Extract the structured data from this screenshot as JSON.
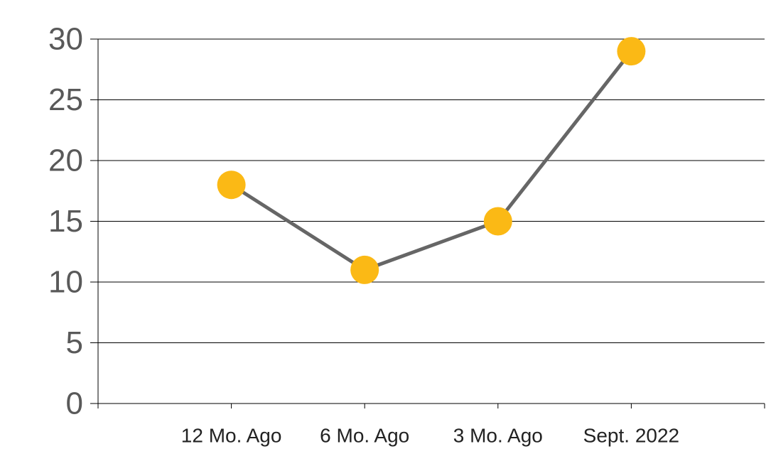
{
  "chart_data": {
    "type": "line",
    "categories": [
      "12 Mo. Ago",
      "6 Mo. Ago",
      "3 Mo. Ago",
      "Sept. 2022"
    ],
    "values": [
      18,
      11,
      15,
      29
    ],
    "ylim": [
      0,
      30
    ],
    "yticks": [
      0,
      5,
      10,
      15,
      20,
      25,
      30
    ],
    "grid": true,
    "legend": "none",
    "title": "",
    "xlabel": "",
    "ylabel": "",
    "colors": {
      "line": "#666666",
      "marker": "#FBB915",
      "grid": "#000000"
    }
  }
}
